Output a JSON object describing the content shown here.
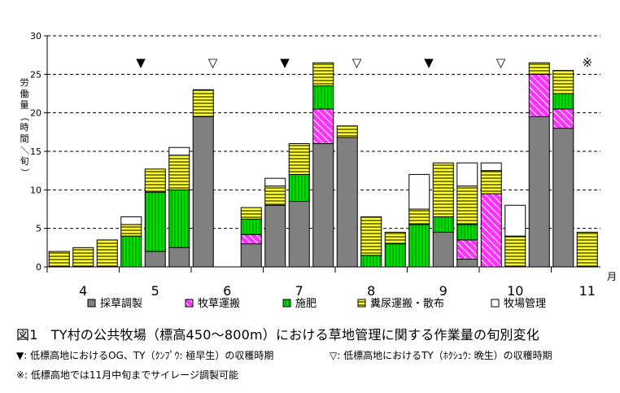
{
  "chart_data": {
    "type": "bar",
    "stacked": true,
    "ylabel": "労働量（時間／旬）",
    "ylim": [
      0,
      30
    ],
    "yticks": [
      0,
      5,
      10,
      15,
      20,
      25,
      30
    ],
    "grid": "horizontal-dashed",
    "month_labels": [
      "4",
      "5",
      "6",
      "7",
      "8",
      "9",
      "10",
      "11"
    ],
    "month_unit": "月",
    "series": [
      {
        "name": "採草調製",
        "color": "#808080",
        "pattern": "solid",
        "values": [
          0,
          0,
          0,
          0,
          2,
          2.5,
          19.5,
          0,
          3,
          8,
          8.5,
          16,
          16.8,
          0,
          0,
          0,
          4.5,
          1,
          0,
          0,
          19.5,
          18,
          0
        ]
      },
      {
        "name": "牧草運搬",
        "color": "#ff33ff",
        "pattern": "diagonal",
        "values": [
          0,
          0,
          0,
          0,
          0,
          0,
          0,
          0,
          1.2,
          0,
          0,
          4.5,
          0,
          0,
          0,
          0,
          0,
          2.5,
          9.5,
          0,
          5.5,
          2.5,
          0
        ]
      },
      {
        "name": "施肥",
        "color": "#00dd00",
        "pattern": "vertical",
        "values": [
          0,
          0,
          0,
          4,
          7.7,
          7.5,
          0,
          0,
          2,
          0,
          3.5,
          3,
          0,
          1.5,
          3,
          5.5,
          2,
          2,
          0,
          0,
          0,
          2,
          0
        ]
      },
      {
        "name": "糞尿運搬・散布",
        "color": "#ffff33",
        "pattern": "horizontal",
        "values": [
          2,
          2.5,
          3.5,
          1.5,
          3,
          4.5,
          3.5,
          0,
          1.5,
          2.5,
          4,
          3,
          1.5,
          5,
          1.5,
          2,
          7,
          5,
          3,
          4,
          1.5,
          3,
          4.5
        ]
      },
      {
        "name": "牧場管理",
        "color": "#ffffff",
        "pattern": "solid",
        "values": [
          0,
          0,
          0,
          1,
          0,
          1,
          0,
          0,
          0,
          1,
          0,
          0,
          0,
          0,
          0,
          4.5,
          0,
          3,
          1,
          4,
          0,
          0,
          0
        ]
      }
    ],
    "markers": [
      {
        "symbol": "▼",
        "pos": 5.3
      },
      {
        "symbol": "▽",
        "pos": 6.3
      },
      {
        "symbol": "▼",
        "pos": 7.3
      },
      {
        "symbol": "▽",
        "pos": 8.3
      },
      {
        "symbol": "▼",
        "pos": 9.3
      },
      {
        "symbol": "▽",
        "pos": 10.3
      },
      {
        "symbol": "※",
        "pos": 11.5
      }
    ]
  },
  "caption": "図1　TY村の公共牧場（標高450～800m）における草地管理に関する作業量の旬別変化",
  "notes": {
    "early": "▼: 低標高地におけるOG、TY（ｸﾝﾌﾟｳ: 極早生）の収穫時期",
    "late": "▽: 低標高地におけるTY（ﾎｸｼｭｳ: 晩生）の収穫時期",
    "silage": "※: 低標高地では11月中旬までサイレージ調製可能"
  }
}
